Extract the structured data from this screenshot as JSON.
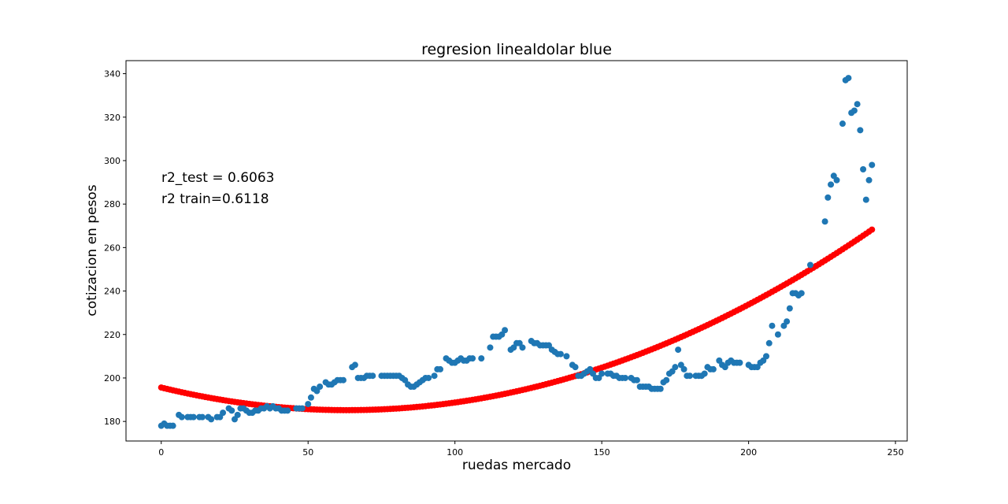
{
  "chart_data": {
    "type": "scatter",
    "title": "regresion linealdolar blue",
    "xlabel": "ruedas mercado",
    "ylabel": "cotizacion en pesos",
    "xlim": [
      -12,
      254
    ],
    "ylim": [
      171,
      346
    ],
    "xticks": [
      0,
      50,
      100,
      150,
      200,
      250
    ],
    "yticks": [
      180,
      200,
      220,
      240,
      260,
      280,
      300,
      320,
      340
    ],
    "grid": false,
    "annotations": [
      "r2_test = 0.6063",
      "r2  train=0.6118"
    ],
    "colors": {
      "actual": "#1f77b4",
      "fit": "#ff0000"
    },
    "fit_curve": {
      "description_points": [
        [
          0,
          195.5
        ],
        [
          50,
          188
        ],
        [
          100,
          192
        ],
        [
          150,
          210
        ],
        [
          200,
          238.5
        ],
        [
          242,
          272
        ]
      ],
      "x_start": 0,
      "x_end": 242,
      "x_step": 1,
      "coefficients": [
        195.6,
        -0.329,
        0.0026
      ]
    },
    "actual_points": [
      [
        0,
        178
      ],
      [
        1,
        179
      ],
      [
        2,
        178
      ],
      [
        3,
        178
      ],
      [
        4,
        178
      ],
      [
        6,
        183
      ],
      [
        7,
        182
      ],
      [
        9,
        182
      ],
      [
        10,
        182
      ],
      [
        11,
        182
      ],
      [
        13,
        182
      ],
      [
        14,
        182
      ],
      [
        16,
        182
      ],
      [
        17,
        181
      ],
      [
        19,
        182
      ],
      [
        20,
        182
      ],
      [
        21,
        184
      ],
      [
        23,
        186
      ],
      [
        24,
        185
      ],
      [
        25,
        181
      ],
      [
        26,
        183
      ],
      [
        27,
        186
      ],
      [
        28,
        186
      ],
      [
        29,
        185
      ],
      [
        30,
        184
      ],
      [
        31,
        184
      ],
      [
        32,
        185
      ],
      [
        33,
        185
      ],
      [
        34,
        186
      ],
      [
        35,
        186
      ],
      [
        36,
        187
      ],
      [
        37,
        186
      ],
      [
        38,
        187
      ],
      [
        39,
        186
      ],
      [
        40,
        186
      ],
      [
        41,
        185
      ],
      [
        42,
        185
      ],
      [
        43,
        185
      ],
      [
        46,
        186
      ],
      [
        47,
        186
      ],
      [
        48,
        186
      ],
      [
        50,
        188
      ],
      [
        51,
        191
      ],
      [
        52,
        195
      ],
      [
        53,
        194
      ],
      [
        54,
        196
      ],
      [
        56,
        198
      ],
      [
        57,
        197
      ],
      [
        58,
        197
      ],
      [
        59,
        198
      ],
      [
        60,
        199
      ],
      [
        61,
        199
      ],
      [
        62,
        199
      ],
      [
        65,
        205
      ],
      [
        66,
        206
      ],
      [
        67,
        200
      ],
      [
        68,
        200
      ],
      [
        69,
        200
      ],
      [
        70,
        201
      ],
      [
        71,
        201
      ],
      [
        72,
        201
      ],
      [
        75,
        201
      ],
      [
        76,
        201
      ],
      [
        77,
        201
      ],
      [
        78,
        201
      ],
      [
        79,
        201
      ],
      [
        80,
        201
      ],
      [
        81,
        201
      ],
      [
        82,
        200
      ],
      [
        83,
        199
      ],
      [
        84,
        197
      ],
      [
        85,
        196
      ],
      [
        86,
        196
      ],
      [
        87,
        197
      ],
      [
        88,
        198
      ],
      [
        89,
        199
      ],
      [
        90,
        200
      ],
      [
        91,
        200
      ],
      [
        93,
        201
      ],
      [
        94,
        204
      ],
      [
        95,
        204
      ],
      [
        97,
        209
      ],
      [
        98,
        208
      ],
      [
        99,
        207
      ],
      [
        100,
        207
      ],
      [
        101,
        208
      ],
      [
        102,
        209
      ],
      [
        103,
        208
      ],
      [
        104,
        208
      ],
      [
        105,
        209
      ],
      [
        106,
        209
      ],
      [
        109,
        209
      ],
      [
        112,
        214
      ],
      [
        113,
        219
      ],
      [
        114,
        219
      ],
      [
        115,
        219
      ],
      [
        116,
        220
      ],
      [
        117,
        222
      ],
      [
        119,
        213
      ],
      [
        120,
        214
      ],
      [
        121,
        216
      ],
      [
        122,
        216
      ],
      [
        123,
        214
      ],
      [
        126,
        217
      ],
      [
        127,
        216
      ],
      [
        128,
        216
      ],
      [
        129,
        215
      ],
      [
        130,
        215
      ],
      [
        131,
        215
      ],
      [
        132,
        215
      ],
      [
        133,
        213
      ],
      [
        134,
        212
      ],
      [
        135,
        211
      ],
      [
        136,
        211
      ],
      [
        138,
        210
      ],
      [
        140,
        206
      ],
      [
        141,
        205
      ],
      [
        142,
        201
      ],
      [
        143,
        201
      ],
      [
        144,
        202
      ],
      [
        145,
        203
      ],
      [
        146,
        204
      ],
      [
        147,
        202
      ],
      [
        148,
        200
      ],
      [
        149,
        200
      ],
      [
        150,
        202
      ],
      [
        152,
        202
      ],
      [
        153,
        202
      ],
      [
        154,
        201
      ],
      [
        155,
        201
      ],
      [
        156,
        200
      ],
      [
        157,
        200
      ],
      [
        158,
        200
      ],
      [
        160,
        200
      ],
      [
        161,
        199
      ],
      [
        162,
        199
      ],
      [
        163,
        196
      ],
      [
        164,
        196
      ],
      [
        165,
        196
      ],
      [
        166,
        196
      ],
      [
        167,
        195
      ],
      [
        168,
        195
      ],
      [
        169,
        195
      ],
      [
        170,
        195
      ],
      [
        171,
        198
      ],
      [
        172,
        199
      ],
      [
        173,
        202
      ],
      [
        174,
        203
      ],
      [
        175,
        205
      ],
      [
        176,
        213
      ],
      [
        177,
        206
      ],
      [
        178,
        204
      ],
      [
        179,
        201
      ],
      [
        180,
        201
      ],
      [
        182,
        201
      ],
      [
        183,
        201
      ],
      [
        184,
        201
      ],
      [
        185,
        202
      ],
      [
        186,
        205
      ],
      [
        187,
        204
      ],
      [
        188,
        204
      ],
      [
        190,
        208
      ],
      [
        191,
        206
      ],
      [
        192,
        205
      ],
      [
        193,
        207
      ],
      [
        194,
        208
      ],
      [
        195,
        207
      ],
      [
        196,
        207
      ],
      [
        197,
        207
      ],
      [
        200,
        206
      ],
      [
        201,
        205
      ],
      [
        202,
        205
      ],
      [
        203,
        205
      ],
      [
        204,
        207
      ],
      [
        205,
        208
      ],
      [
        206,
        210
      ],
      [
        207,
        216
      ],
      [
        208,
        224
      ],
      [
        210,
        220
      ],
      [
        212,
        224
      ],
      [
        213,
        226
      ],
      [
        214,
        232
      ],
      [
        215,
        239
      ],
      [
        216,
        239
      ],
      [
        217,
        238
      ],
      [
        218,
        239
      ],
      [
        221,
        252
      ],
      [
        226,
        272
      ],
      [
        227,
        283
      ],
      [
        228,
        289
      ],
      [
        229,
        293
      ],
      [
        230,
        291
      ],
      [
        232,
        317
      ],
      [
        233,
        337
      ],
      [
        234,
        338
      ],
      [
        235,
        322
      ],
      [
        236,
        323
      ],
      [
        237,
        326
      ],
      [
        238,
        314
      ],
      [
        239,
        296
      ],
      [
        240,
        282
      ],
      [
        241,
        291
      ],
      [
        242,
        298
      ]
    ]
  }
}
